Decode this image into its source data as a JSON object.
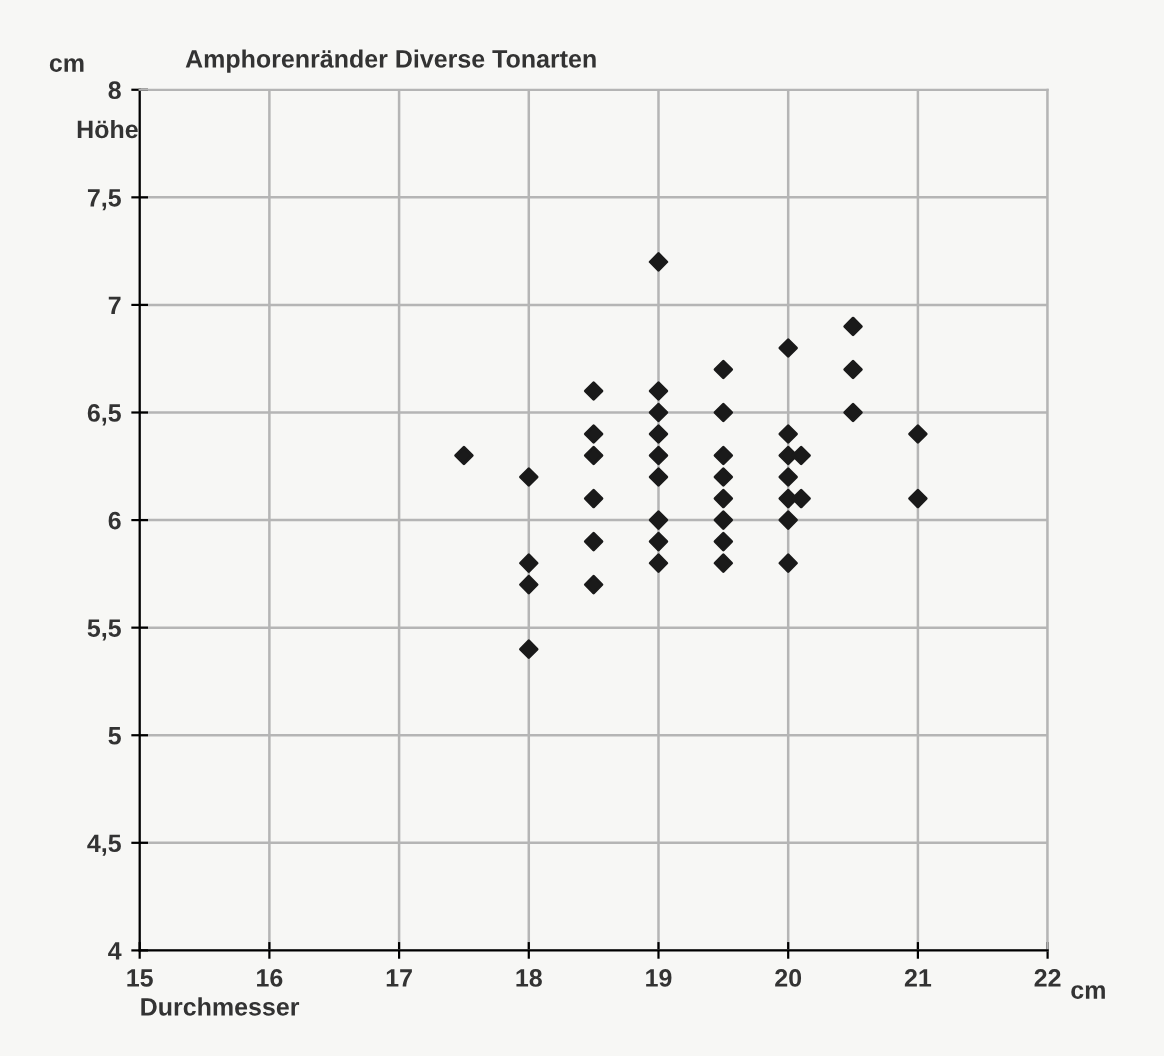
{
  "chart_data": {
    "type": "scatter",
    "title": "Amphorenränder Diverse Tonarten",
    "xlabel": "Durchmesser",
    "ylabel": "Höhe",
    "annotations": [
      "cm",
      "cm"
    ],
    "series": [
      {
        "color": "#1a1a1a",
        "x": [
          17.5,
          18,
          18,
          18,
          18,
          18.5,
          18.5,
          18.5,
          18.5,
          18.5,
          18.5,
          19,
          19,
          19,
          19,
          19,
          19,
          19,
          19,
          19,
          19.5,
          19.5,
          19.5,
          19.5,
          19.5,
          19.5,
          19.5,
          19.5,
          20,
          20,
          20,
          20,
          20,
          20,
          20,
          20.1,
          20.1,
          20.5,
          20.5,
          20.5,
          21,
          21
        ],
        "values": [
          6.3,
          6.2,
          5.8,
          5.7,
          5.4,
          6.6,
          6.4,
          6.3,
          6.1,
          5.9,
          5.7,
          7.2,
          6.6,
          6.5,
          6.4,
          6.3,
          6.2,
          6.0,
          5.9,
          5.8,
          6.7,
          6.5,
          6.3,
          6.2,
          6.1,
          6.0,
          5.9,
          5.8,
          6.8,
          6.4,
          6.3,
          6.2,
          6.1,
          6.0,
          5.8,
          6.3,
          6.1,
          6.9,
          6.7,
          6.5,
          6.4,
          6.1
        ]
      }
    ],
    "xlim": [
      15,
      22
    ],
    "ylim": [
      4,
      8
    ],
    "xticks": [
      15,
      16,
      17,
      18,
      19,
      20,
      21,
      22
    ],
    "yticks": [
      4,
      {
        "value": 4.5,
        "label": "4,5"
      },
      5,
      {
        "value": 5.5,
        "label": "5,5"
      },
      6,
      {
        "value": 6.5,
        "label": "6,5"
      },
      7,
      {
        "value": 7.5,
        "label": "7,5"
      },
      8
    ],
    "grid": true,
    "marker": "diamond",
    "legend": false
  }
}
